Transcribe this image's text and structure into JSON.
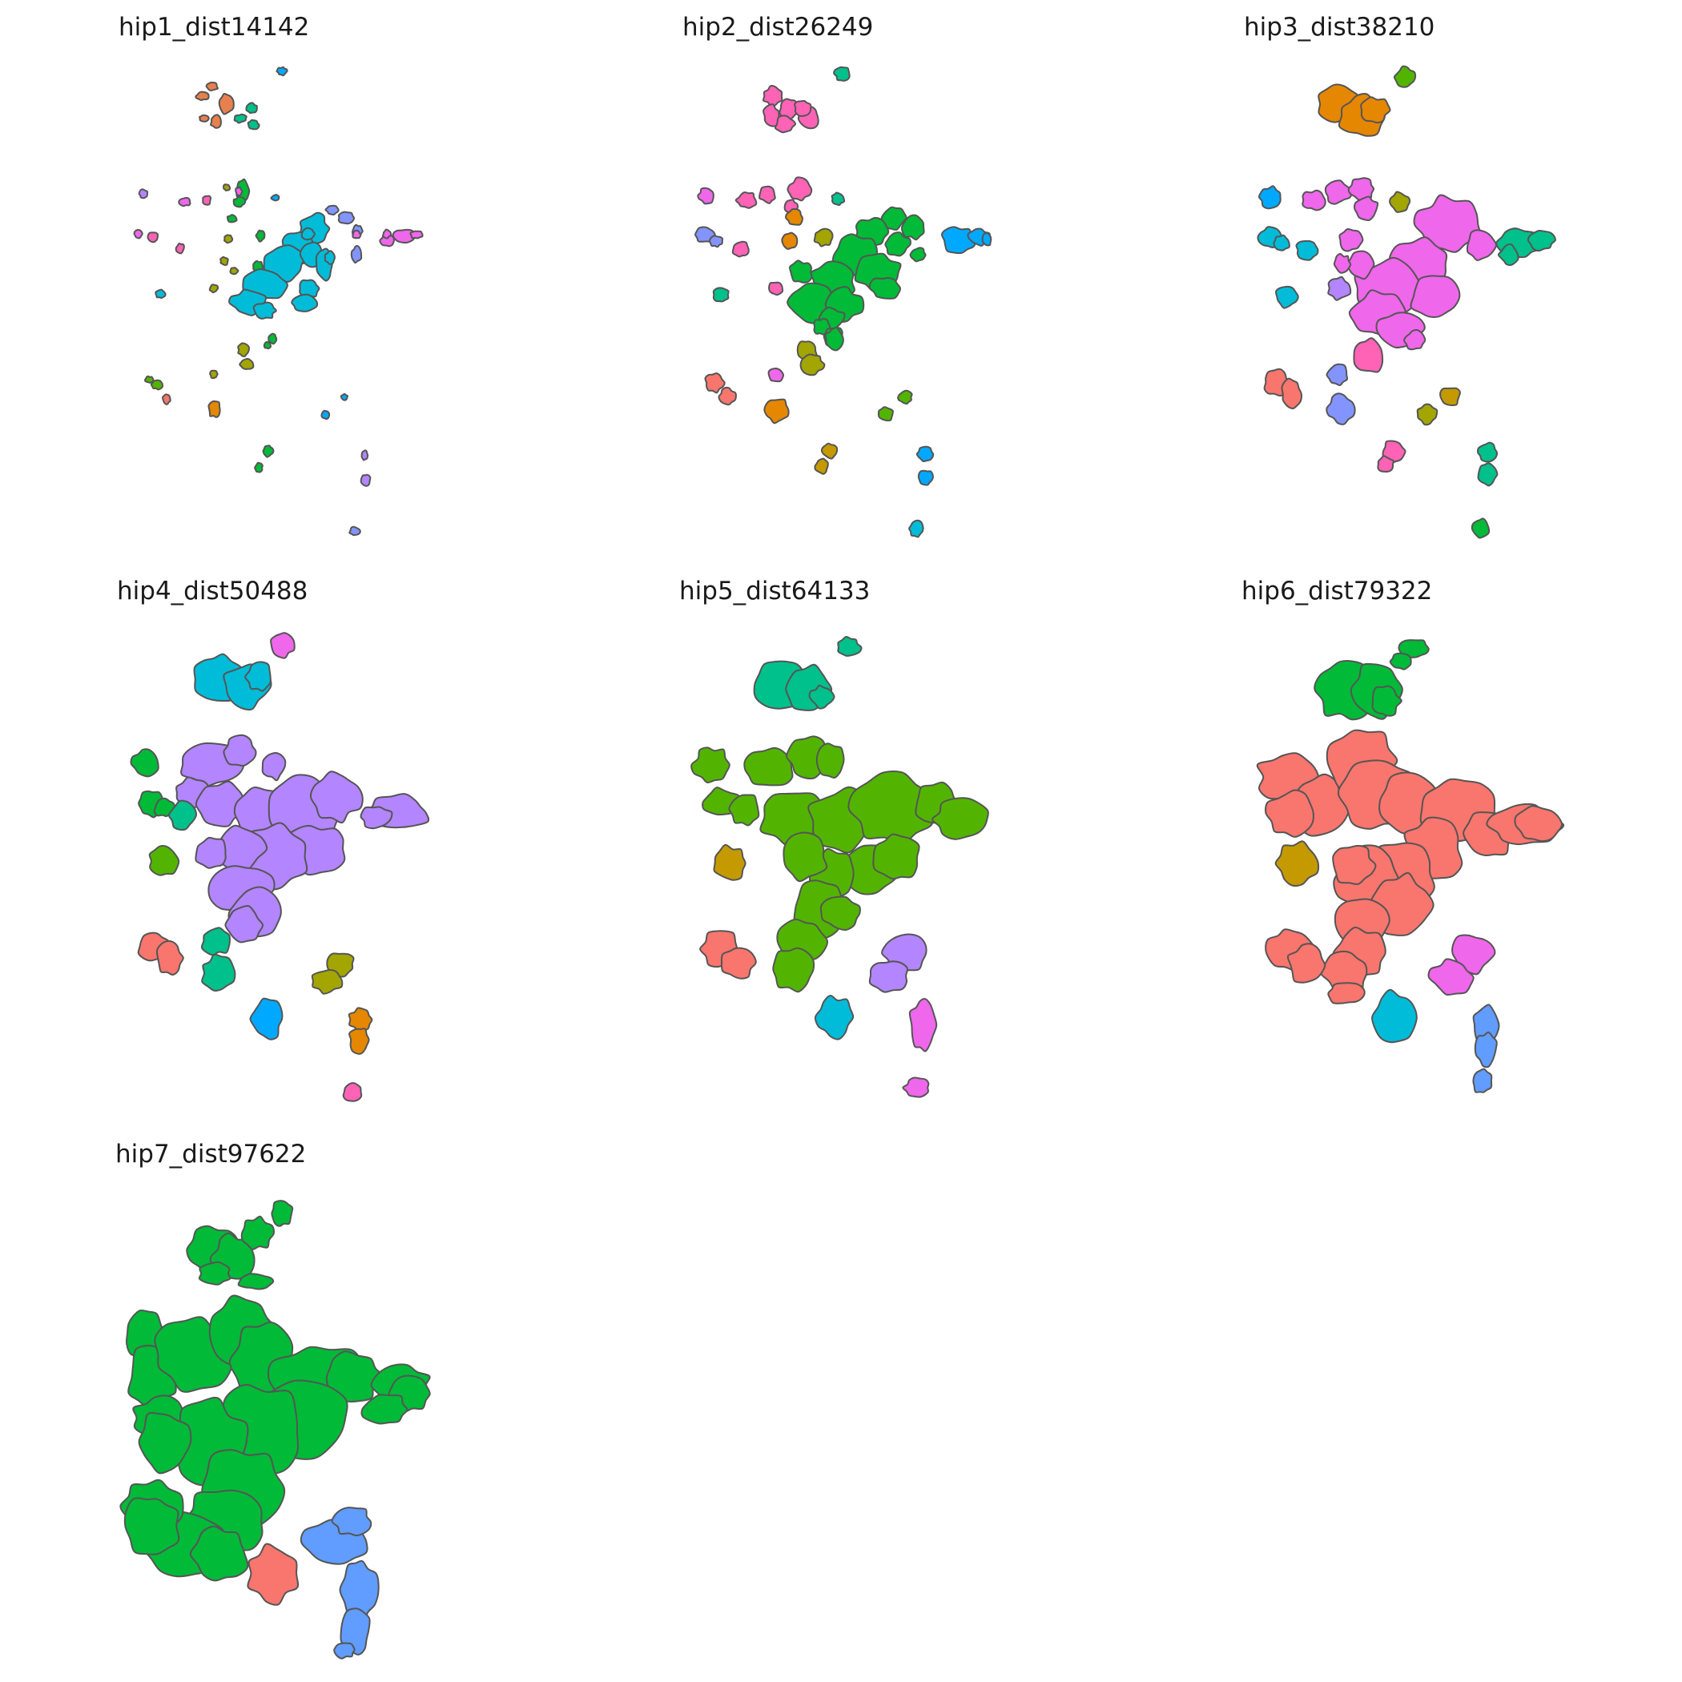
{
  "panels": [
    {
      "title": "hip1_dist14142"
    },
    {
      "title": "hip2_dist26249"
    },
    {
      "title": "hip3_dist38210"
    },
    {
      "title": "hip4_dist50488"
    },
    {
      "title": "hip5_dist64133"
    },
    {
      "title": "hip6_dist79322"
    },
    {
      "title": "hip7_dist97622"
    }
  ],
  "colors": {
    "outline": "#555555",
    "red": "#F8766D",
    "orange": "#E58700",
    "olive": "#A3A500",
    "green": "#00BA38",
    "lime": "#53B400",
    "teal": "#00C08B",
    "cyan": "#00BCD8",
    "sky": "#00A9FF",
    "blue": "#619CFF",
    "lavender": "#B385FF",
    "magenta": "#EF67EB",
    "pink": "#FF63B6",
    "gold": "#C49A00",
    "purpleblue": "#8494FF"
  }
}
